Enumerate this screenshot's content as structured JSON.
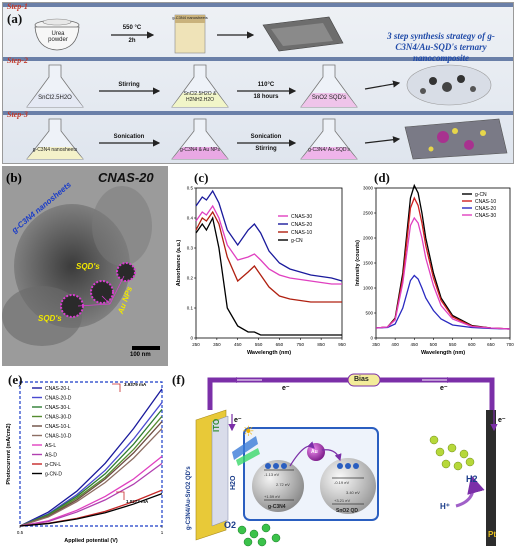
{
  "panel_a": {
    "letter": "(a)",
    "steps": [
      "Step-1",
      "Step-2",
      "Step-3"
    ],
    "step1": {
      "reagent": "Urea powder",
      "condition_top": "550 °C",
      "condition_bottom": "2h",
      "product": "g-C3N4 nanosheets"
    },
    "step2": {
      "flask1": "SnCl2.5H2O",
      "arrow1": "Stirring",
      "flask2": "SnCl2.5H2O & H2NH2.H2O",
      "arrow2_top": "110°C",
      "arrow2_bottom": "18 hours",
      "flask3": "SnO2 SQD's"
    },
    "step3": {
      "flask1": "g-C3N4 nanosheets",
      "arrow1": "Sonication",
      "flask2": "g-C3N4 & Au NPs",
      "arrow2_top": "Sonication",
      "arrow2_bottom": "Stirring",
      "flask3": "g-C3N4/ Au-SQD's"
    },
    "strategy_text": "3 step synthesis strategy of g-C3N4/Au-SQD's ternary nanocomposite"
  },
  "panel_b": {
    "letter": "(b)",
    "title": "CNAS-20",
    "labels": [
      "g-C3N4 nanosheets",
      "SQD's",
      "SQD's",
      "Au NPs"
    ],
    "scalebar": "100 nm"
  },
  "chart_data": [
    {
      "panel": "(c)",
      "type": "line",
      "xlabel": "Wavelength (nm)",
      "ylabel": "Absorbance (a.u.)",
      "xlim": [
        250,
        950
      ],
      "ylim": [
        0.0,
        0.5
      ],
      "x_ticks": [
        250,
        350,
        450,
        550,
        650,
        750,
        850,
        950
      ],
      "y_ticks": [
        0.0,
        0.1,
        0.2,
        0.3,
        0.4,
        0.5
      ],
      "x": [
        250,
        280,
        300,
        330,
        360,
        400,
        450,
        500,
        530,
        560,
        600,
        650,
        700,
        800,
        900,
        950
      ],
      "series": [
        {
          "name": "CNAS-30",
          "color": "#e040c0",
          "values": [
            0.39,
            0.42,
            0.41,
            0.44,
            0.4,
            0.31,
            0.26,
            0.27,
            0.28,
            0.26,
            0.23,
            0.21,
            0.2,
            0.19,
            0.18,
            0.18
          ]
        },
        {
          "name": "CNAS-20",
          "color": "#1a1a9c",
          "values": [
            0.44,
            0.47,
            0.46,
            0.49,
            0.45,
            0.36,
            0.31,
            0.36,
            0.38,
            0.35,
            0.29,
            0.25,
            0.23,
            0.21,
            0.2,
            0.19
          ]
        },
        {
          "name": "CNAS-10",
          "color": "#b02010",
          "values": [
            0.36,
            0.4,
            0.39,
            0.42,
            0.38,
            0.27,
            0.19,
            0.22,
            0.24,
            0.21,
            0.17,
            0.14,
            0.13,
            0.12,
            0.12,
            0.12
          ]
        },
        {
          "name": "g-CN",
          "color": "#000000",
          "values": [
            0.35,
            0.38,
            0.36,
            0.4,
            0.3,
            0.1,
            0.04,
            0.02,
            0.02,
            0.01,
            0.01,
            0.01,
            0.01,
            0.01,
            0.01,
            0.01
          ]
        }
      ]
    },
    {
      "panel": "(d)",
      "type": "line",
      "xlabel": "Wavelength (nm)",
      "ylabel": "Intensity (counts)",
      "xlim": [
        350,
        700
      ],
      "ylim": [
        0,
        3000
      ],
      "x_ticks": [
        350,
        400,
        450,
        500,
        550,
        600,
        650,
        700
      ],
      "y_ticks": [
        0,
        500,
        1000,
        1500,
        2000,
        2500,
        3000
      ],
      "x": [
        350,
        380,
        400,
        420,
        440,
        450,
        460,
        470,
        480,
        500,
        520,
        550,
        600,
        650,
        700
      ],
      "series": [
        {
          "name": "g-CN",
          "color": "#000000",
          "values": [
            200,
            220,
            400,
            1300,
            2800,
            3050,
            2900,
            2500,
            2000,
            1300,
            800,
            450,
            250,
            200,
            180
          ]
        },
        {
          "name": "CNAS-10",
          "color": "#d02020",
          "values": [
            200,
            220,
            380,
            1200,
            2600,
            2800,
            2650,
            2300,
            1850,
            1200,
            750,
            420,
            240,
            200,
            180
          ]
        },
        {
          "name": "CNAS-20",
          "color": "#2a2ac0",
          "values": [
            200,
            210,
            280,
            600,
            1150,
            1250,
            1180,
            1000,
            800,
            550,
            380,
            260,
            210,
            190,
            180
          ]
        },
        {
          "name": "CNAS-30",
          "color": "#e040c0",
          "values": [
            200,
            220,
            360,
            1100,
            2250,
            2400,
            2300,
            2000,
            1600,
            1050,
            650,
            380,
            230,
            200,
            180
          ]
        }
      ]
    },
    {
      "panel": "(e)",
      "type": "line",
      "xlabel": "Applied potential (V)",
      "ylabel": "Photocurrent (mA/cm2)",
      "xlim": [
        0.5,
        1.0
      ],
      "x_ticks": [
        0.5,
        1.0
      ],
      "x": [
        0.5,
        0.6,
        0.7,
        0.8,
        0.9,
        1.0
      ],
      "annotations": [
        "3.9379 mA",
        "1.0277 mA"
      ],
      "series": [
        {
          "name": "CNAS-20-L",
          "color": "#1a1a9c",
          "values": [
            0.0,
            0.4,
            1.0,
            1.8,
            2.8,
            3.94
          ]
        },
        {
          "name": "CNAS-20-D",
          "color": "#4a4ad0",
          "values": [
            0.0,
            0.35,
            0.9,
            1.6,
            2.5,
            3.55
          ]
        },
        {
          "name": "CNAS-30-L",
          "color": "#2e7d32",
          "values": [
            0.0,
            0.33,
            0.85,
            1.5,
            2.35,
            3.35
          ]
        },
        {
          "name": "CNAS-30-D",
          "color": "#558b2f",
          "values": [
            0.0,
            0.3,
            0.8,
            1.4,
            2.2,
            3.15
          ]
        },
        {
          "name": "CNAS-10-L",
          "color": "#6d4c41",
          "values": [
            0.0,
            0.28,
            0.75,
            1.35,
            2.1,
            3.0
          ]
        },
        {
          "name": "CNAS-10-D",
          "color": "#8d6e63",
          "values": [
            0.0,
            0.26,
            0.7,
            1.25,
            1.95,
            2.8
          ]
        },
        {
          "name": "AS-L",
          "color": "#e040c0",
          "values": [
            0.0,
            0.15,
            0.45,
            0.85,
            1.35,
            2.0
          ]
        },
        {
          "name": "AS-D",
          "color": "#b040b0",
          "values": [
            0.0,
            0.13,
            0.4,
            0.75,
            1.2,
            1.8
          ]
        },
        {
          "name": "g-CN-L",
          "color": "#c62828",
          "values": [
            0.0,
            0.08,
            0.22,
            0.42,
            0.7,
            1.03
          ]
        },
        {
          "name": "g-CN-D",
          "color": "#000000",
          "values": [
            0.0,
            0.07,
            0.2,
            0.38,
            0.63,
            0.93
          ]
        }
      ]
    }
  ],
  "panel_c": {
    "letter": "(c)"
  },
  "panel_d": {
    "letter": "(d)"
  },
  "panel_e": {
    "letter": "(e)"
  },
  "panel_f": {
    "letter": "(f)",
    "bias": "Bias",
    "electron": "e⁻",
    "electrode_left": "ITO",
    "electrode_left_film": "g-C3N4/Au-SnO2 QD's",
    "electrode_right": "Pt",
    "water": "H2O",
    "oxygen": "O2",
    "hydrogen": "H2",
    "proton": "H⁺",
    "sphere_left": "g-C3N4",
    "sphere_right": "SnO2 QD",
    "band_vals": [
      "-1.13 eV",
      "2.72 eV",
      "+1.59 eV",
      "-0.19 eV",
      "3.40 eV",
      "+3.21 eV"
    ],
    "au_label": "Au",
    "sun_glyph": "☀"
  }
}
